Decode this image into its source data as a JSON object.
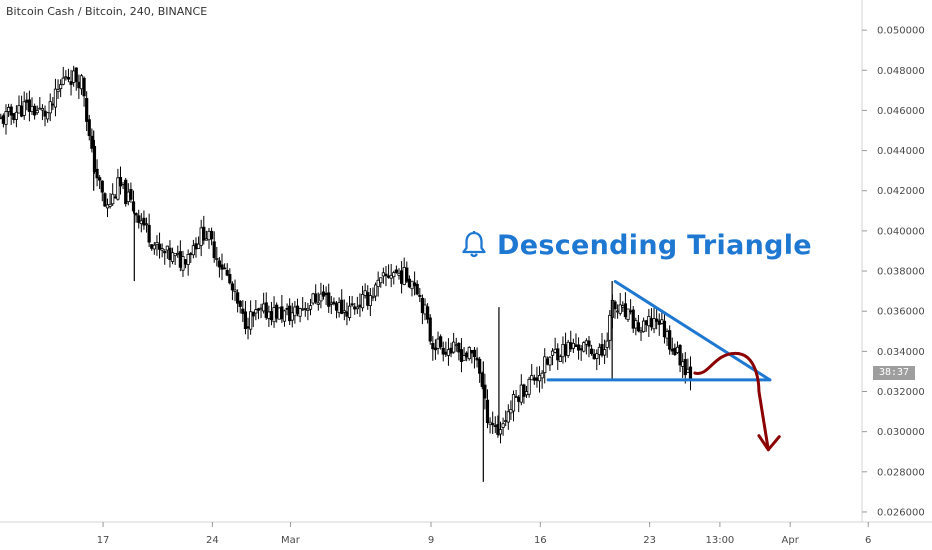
{
  "header": {
    "symbol": "Bitcoin Cash / Bitcoin, 240, BINANCE"
  },
  "annotation": {
    "text": "Descending Triangle",
    "icon": "bell-icon",
    "color": "#1e78d2"
  },
  "price_axis": {
    "countdown": "38:37"
  },
  "colors": {
    "candle": "#000000",
    "pattern": "#1e78d2",
    "projection": "#8b0000",
    "countdown_bg": "#9e9e9e"
  },
  "chart_data": {
    "type": "candlestick",
    "title": "Bitcoin Cash / Bitcoin, 240, BINANCE",
    "xlabel": "",
    "ylabel": "",
    "ylim": [
      0.0255,
      0.0515
    ],
    "y_ticks": [
      "0.026000",
      "0.028000",
      "0.030000",
      "0.032000",
      "0.034000",
      "0.036000",
      "0.038000",
      "0.040000",
      "0.042000",
      "0.044000",
      "0.046000",
      "0.048000",
      "0.050000"
    ],
    "x_ticks": [
      "17",
      "24",
      "Mar",
      "9",
      "16",
      "23",
      "13:00",
      "Apr",
      "6"
    ],
    "x_tick_days": [
      0,
      7,
      12,
      21,
      28,
      35,
      39.5,
      44,
      49
    ],
    "xlim": [
      -6.6,
      48.6
    ],
    "last_day": 37.7,
    "trend_path": [
      {
        "day": -6.6,
        "price": 0.0455
      },
      {
        "day": -5,
        "price": 0.0462
      },
      {
        "day": -3.5,
        "price": 0.0458
      },
      {
        "day": -2.4,
        "price": 0.0478
      },
      {
        "day": -1.3,
        "price": 0.0475
      },
      {
        "day": -0.8,
        "price": 0.044
      },
      {
        "day": 0.2,
        "price": 0.041
      },
      {
        "day": 1,
        "price": 0.0423
      },
      {
        "day": 2.5,
        "price": 0.0405
      },
      {
        "day": 3.5,
        "price": 0.039
      },
      {
        "day": 5,
        "price": 0.0385
      },
      {
        "day": 6.5,
        "price": 0.04
      },
      {
        "day": 7.8,
        "price": 0.038
      },
      {
        "day": 9,
        "price": 0.0355
      },
      {
        "day": 10.5,
        "price": 0.036
      },
      {
        "day": 12,
        "price": 0.0358
      },
      {
        "day": 14,
        "price": 0.0368
      },
      {
        "day": 15.5,
        "price": 0.036
      },
      {
        "day": 17,
        "price": 0.0367
      },
      {
        "day": 18.5,
        "price": 0.038
      },
      {
        "day": 20,
        "price": 0.0375
      },
      {
        "day": 20.6,
        "price": 0.036
      },
      {
        "day": 21,
        "price": 0.0345
      },
      {
        "day": 22.5,
        "price": 0.034
      },
      {
        "day": 24,
        "price": 0.0337
      },
      {
        "day": 24.5,
        "price": 0.031
      },
      {
        "day": 25.3,
        "price": 0.03
      },
      {
        "day": 26.5,
        "price": 0.0318
      },
      {
        "day": 28,
        "price": 0.033
      },
      {
        "day": 29,
        "price": 0.034
      },
      {
        "day": 30.5,
        "price": 0.0343
      },
      {
        "day": 32,
        "price": 0.0338
      },
      {
        "day": 32.6,
        "price": 0.0362
      },
      {
        "day": 33.5,
        "price": 0.0358
      },
      {
        "day": 34.5,
        "price": 0.035
      },
      {
        "day": 35.5,
        "price": 0.0357
      },
      {
        "day": 36.5,
        "price": 0.0342
      },
      {
        "day": 37.7,
        "price": 0.0328
      }
    ],
    "spikes": [
      {
        "day": 24.35,
        "high": 0.0335,
        "low": 0.0275
      },
      {
        "day": 25.35,
        "high": 0.0362,
        "low": 0.0298
      },
      {
        "day": -0.6,
        "high": 0.045,
        "low": 0.042
      },
      {
        "day": 32.6,
        "high": 0.0375,
        "low": 0.0326
      },
      {
        "day": 2.0,
        "high": 0.0412,
        "low": 0.0375
      }
    ],
    "pattern": {
      "upper_line": [
        {
          "day": 32.8,
          "price": 0.03748
        },
        {
          "day": 42.7,
          "price": 0.03258
        }
      ],
      "lower_line": [
        {
          "day": 28.5,
          "price": 0.03258
        },
        {
          "day": 42.7,
          "price": 0.03258
        }
      ]
    },
    "projection": [
      {
        "day": 37.9,
        "price": 0.03292
      },
      {
        "day": 40.5,
        "price": 0.0339
      },
      {
        "day": 42.0,
        "price": 0.032
      },
      {
        "day": 42.6,
        "price": 0.0291
      }
    ],
    "projection_arrow": [
      {
        "day": 42.0,
        "price": 0.0298
      },
      {
        "day": 42.6,
        "price": 0.0291
      },
      {
        "day": 43.3,
        "price": 0.02975
      }
    ]
  }
}
